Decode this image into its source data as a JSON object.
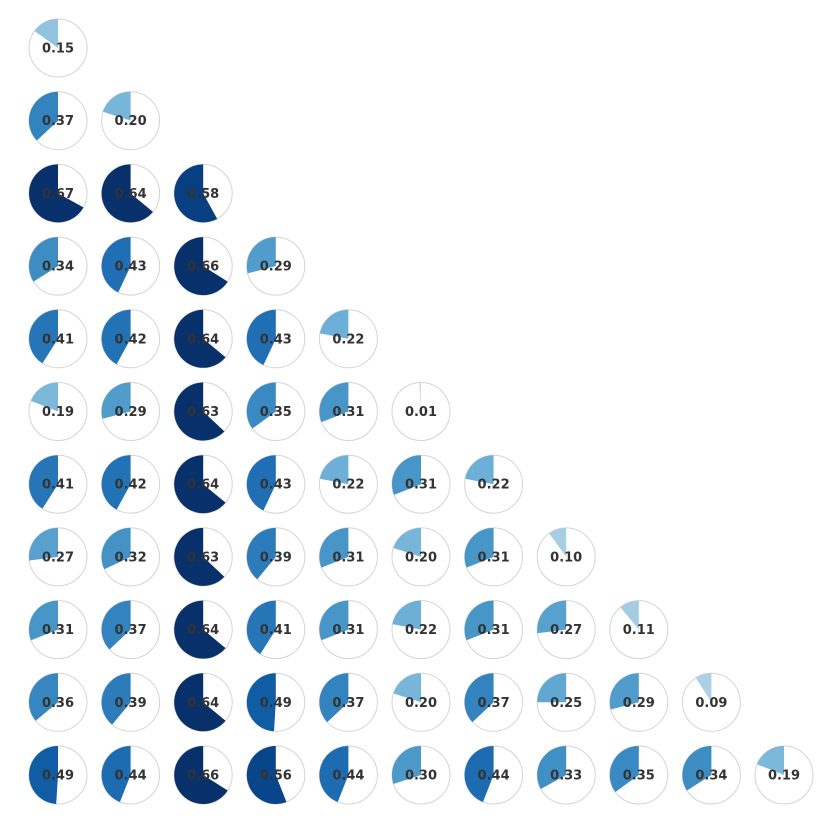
{
  "chart_data": {
    "type": "pie",
    "layout": "lower-triangular matrix of pie glyphs (correlation-style), clockwise from 12 o'clock",
    "colormap": "Blues",
    "rows": [
      [
        0.15
      ],
      [
        0.37,
        0.2
      ],
      [
        0.67,
        0.64,
        0.58
      ],
      [
        0.34,
        0.43,
        0.66,
        0.29
      ],
      [
        0.41,
        0.42,
        0.64,
        0.43,
        0.22
      ],
      [
        0.19,
        0.29,
        0.63,
        0.35,
        0.31,
        0.01
      ],
      [
        0.41,
        0.42,
        0.64,
        0.43,
        0.22,
        0.31,
        0.22
      ],
      [
        0.27,
        0.32,
        0.63,
        0.39,
        0.31,
        0.2,
        0.31,
        0.1
      ],
      [
        0.31,
        0.37,
        0.64,
        0.41,
        0.31,
        0.22,
        0.31,
        0.27,
        0.11
      ],
      [
        0.36,
        0.39,
        0.64,
        0.49,
        0.37,
        0.2,
        0.37,
        0.25,
        0.29,
        0.09
      ],
      [
        0.49,
        0.44,
        0.66,
        0.56,
        0.44,
        0.3,
        0.44,
        0.33,
        0.35,
        0.34,
        0.19
      ]
    ],
    "labels": [
      [
        "0.15"
      ],
      [
        "0.37",
        "0.20"
      ],
      [
        "0.67",
        "0.64",
        "0.58"
      ],
      [
        "0.34",
        "0.43",
        "0.66",
        "0.29"
      ],
      [
        "0.41",
        "0.42",
        "0.64",
        "0.43",
        "0.22"
      ],
      [
        "0.19",
        "0.29",
        "0.63",
        "0.35",
        "0.31",
        "0.01"
      ],
      [
        "0.41",
        "0.42",
        "0.64",
        "0.43",
        "0.22",
        "0.31",
        "0.22"
      ],
      [
        "0.27",
        "0.32",
        "0.63",
        "0.39",
        "0.31",
        "0.20",
        "0.31",
        "0.10"
      ],
      [
        "0.31",
        "0.37",
        "0.64",
        "0.41",
        "0.31",
        "0.22",
        "0.31",
        "0.27",
        "0.11"
      ],
      [
        "0.36",
        "0.39",
        "0.64",
        "0.49",
        "0.37",
        "0.20",
        "0.37",
        "0.25",
        "0.29",
        "0.09"
      ],
      [
        "0.49",
        "0.44",
        "0.66",
        "0.56",
        "0.44",
        "0.30",
        "0.44",
        "0.33",
        "0.35",
        "0.34",
        "0.19"
      ]
    ],
    "title": "",
    "xlabel": "",
    "ylabel": "",
    "grid": false,
    "legend": "none"
  }
}
